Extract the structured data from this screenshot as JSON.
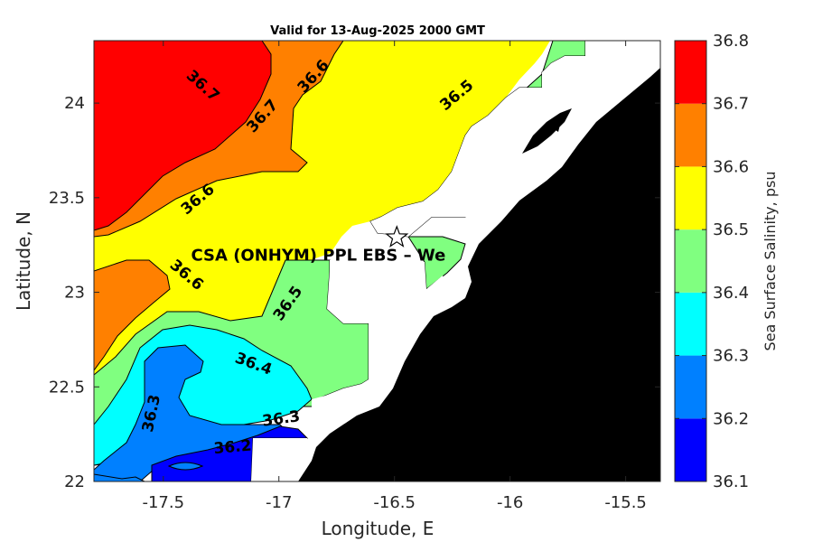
{
  "chart_data": {
    "type": "heatmap",
    "title": "Valid for 13-Aug-2025 2000 GMT",
    "xlabel": "Longitude, E",
    "ylabel": "Latitude, N",
    "xlim": [
      -17.8,
      -15.35
    ],
    "ylim": [
      22.0,
      24.33
    ],
    "x_ticks": [
      {
        "value": -17.5,
        "label": "-17.5"
      },
      {
        "value": -17.0,
        "label": "-17"
      },
      {
        "value": -16.5,
        "label": "-16.5"
      },
      {
        "value": -16.0,
        "label": "-16"
      },
      {
        "value": -15.5,
        "label": "-15.5"
      }
    ],
    "y_ticks": [
      {
        "value": 22.0,
        "label": "22"
      },
      {
        "value": 22.5,
        "label": "22.5"
      },
      {
        "value": 23.0,
        "label": "23"
      },
      {
        "value": 23.5,
        "label": "23.5"
      },
      {
        "value": 24.0,
        "label": "24"
      }
    ],
    "colorbar": {
      "label": "Sea Surface Salinity, psu",
      "levels": [
        36.1,
        36.2,
        36.3,
        36.4,
        36.5,
        36.6,
        36.7,
        36.8
      ],
      "level_labels": [
        "36.1",
        "36.2",
        "36.3",
        "36.4",
        "36.5",
        "36.6",
        "36.7",
        "36.8"
      ],
      "colors": [
        "#0000ff",
        "#0080ff",
        "#00ffff",
        "#80ff80",
        "#ffff00",
        "#ff8000",
        "#ff0000"
      ]
    },
    "contour_labels": [
      {
        "text": "36.7",
        "lon": -17.33,
        "lat": 24.09,
        "angle": 42
      },
      {
        "text": "36.6",
        "lon": -16.85,
        "lat": 24.14,
        "angle": -48
      },
      {
        "text": "36.5",
        "lon": -16.23,
        "lat": 24.04,
        "angle": -40
      },
      {
        "text": "36.7",
        "lon": -17.07,
        "lat": 23.93,
        "angle": -48
      },
      {
        "text": "36.6",
        "lon": -17.35,
        "lat": 23.49,
        "angle": -40
      },
      {
        "text": "36.6",
        "lon": -17.4,
        "lat": 23.09,
        "angle": 40
      },
      {
        "text": "36.5",
        "lon": -16.96,
        "lat": 22.94,
        "angle": -55
      },
      {
        "text": "36.4",
        "lon": -17.11,
        "lat": 22.62,
        "angle": 20
      },
      {
        "text": "36.3",
        "lon": -17.55,
        "lat": 22.36,
        "angle": -78
      },
      {
        "text": "36.3",
        "lon": -16.99,
        "lat": 22.33,
        "angle": -8
      },
      {
        "text": "36.2",
        "lon": -17.2,
        "lat": 22.18,
        "angle": -5
      }
    ],
    "annotation": {
      "text": "CSA (ONHYM) PPL EBS  – We",
      "lon": -17.38,
      "lat": 23.2
    },
    "marker": {
      "type": "star",
      "lon": -16.49,
      "lat": 23.29
    },
    "colors": {
      "land": "#000000",
      "no_data": "#ffffff",
      "contour_line": "#000000"
    }
  }
}
